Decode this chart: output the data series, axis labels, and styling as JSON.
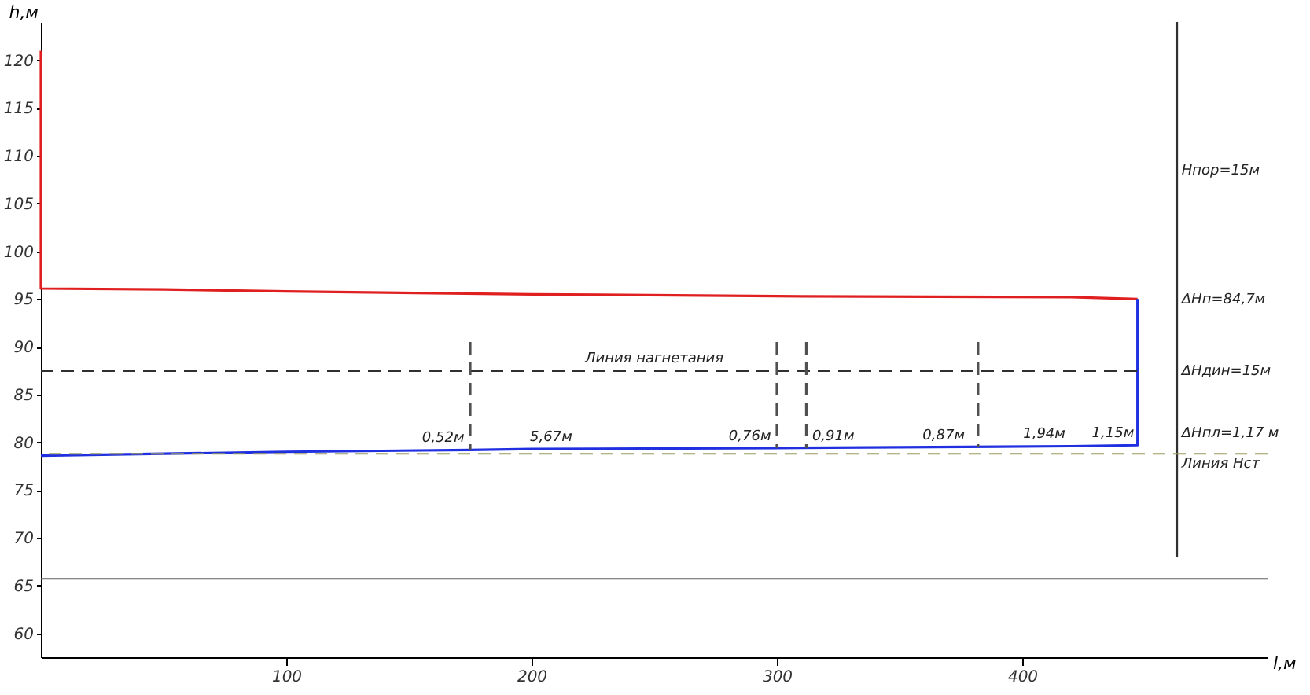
{
  "chart_data": {
    "type": "line",
    "xlabel": "l,м",
    "ylabel": "h,м",
    "xlim": [
      0,
      500
    ],
    "xticks": [
      100,
      200,
      300,
      400
    ],
    "ylim": [
      57.5,
      124
    ],
    "yticks": [
      60,
      65,
      70,
      75,
      80,
      85,
      90,
      95,
      100,
      105,
      110,
      115,
      120
    ],
    "marker": "none",
    "series": [
      {
        "color": "#e02020",
        "line_style": "solid",
        "x": [
          0,
          0,
          50,
          100,
          200,
          300,
          420,
          447
        ],
        "values": [
          121,
          96.1,
          96,
          95.8,
          95.5,
          95.3,
          95.2,
          95.0
        ]
      },
      {
        "color": "#2030e0",
        "line_style": "solid",
        "x": [
          0,
          50,
          100,
          175,
          200,
          300,
          420,
          447,
          447
        ],
        "values": [
          78.6,
          78.8,
          79,
          79.2,
          79.3,
          79.4,
          79.6,
          79.7,
          95.0
        ]
      },
      {
        "color": "#303030",
        "line_style": "dashed",
        "x": [
          0,
          447
        ],
        "values": [
          87.5,
          87.5
        ]
      },
      {
        "color": "#505050",
        "line_style": "dashed",
        "x": [
          175,
          175
        ],
        "values": [
          90.5,
          79.2
        ]
      },
      {
        "color": "#505050",
        "line_style": "dashed",
        "x": [
          300,
          300
        ],
        "values": [
          90.5,
          79.4
        ]
      },
      {
        "color": "#505050",
        "line_style": "dashed",
        "x": [
          312,
          312
        ],
        "values": [
          90.5,
          79.4
        ]
      },
      {
        "color": "#505050",
        "line_style": "dashed",
        "x": [
          382,
          382
        ],
        "values": [
          90.5,
          79.5
        ]
      },
      {
        "color": "#303030",
        "line_style": "solid",
        "x": [
          463,
          463
        ],
        "values": [
          124,
          68
        ]
      }
    ],
    "ref_lines": [
      {
        "axis": "y",
        "value": 78.8,
        "color": "#9a9a60",
        "line_style": "dashed"
      },
      {
        "axis": "y",
        "value": 65.7,
        "color": "#606060",
        "line_style": "solid"
      }
    ],
    "annotations": [
      {
        "text": "0,52м",
        "x": 164,
        "y": 79.2
      },
      {
        "text": "5,67м",
        "x": 208,
        "y": 79.3
      },
      {
        "text": "0,76м",
        "x": 289,
        "y": 79.4
      },
      {
        "text": "0,91м",
        "x": 323,
        "y": 79.4
      },
      {
        "text": "0,87м",
        "x": 368,
        "y": 79.5
      },
      {
        "text": "1,94м",
        "x": 409,
        "y": 79.6
      },
      {
        "text": "1,15м",
        "x": 437,
        "y": 79.7
      },
      {
        "text": "Линия нагнетания",
        "x": 250,
        "y": 87.5
      },
      {
        "text": "Hпор=15м",
        "x": 465,
        "y": 108.5
      },
      {
        "text": "ΔHп=84,7м",
        "x": 465,
        "y": 95
      },
      {
        "text": "ΔHдин=15м",
        "x": 465,
        "y": 87.5
      },
      {
        "text": "ΔHпл=1,17 м",
        "x": 465,
        "y": 81
      },
      {
        "text": "Линия Hст",
        "x": 465,
        "y": 77.8
      }
    ]
  }
}
